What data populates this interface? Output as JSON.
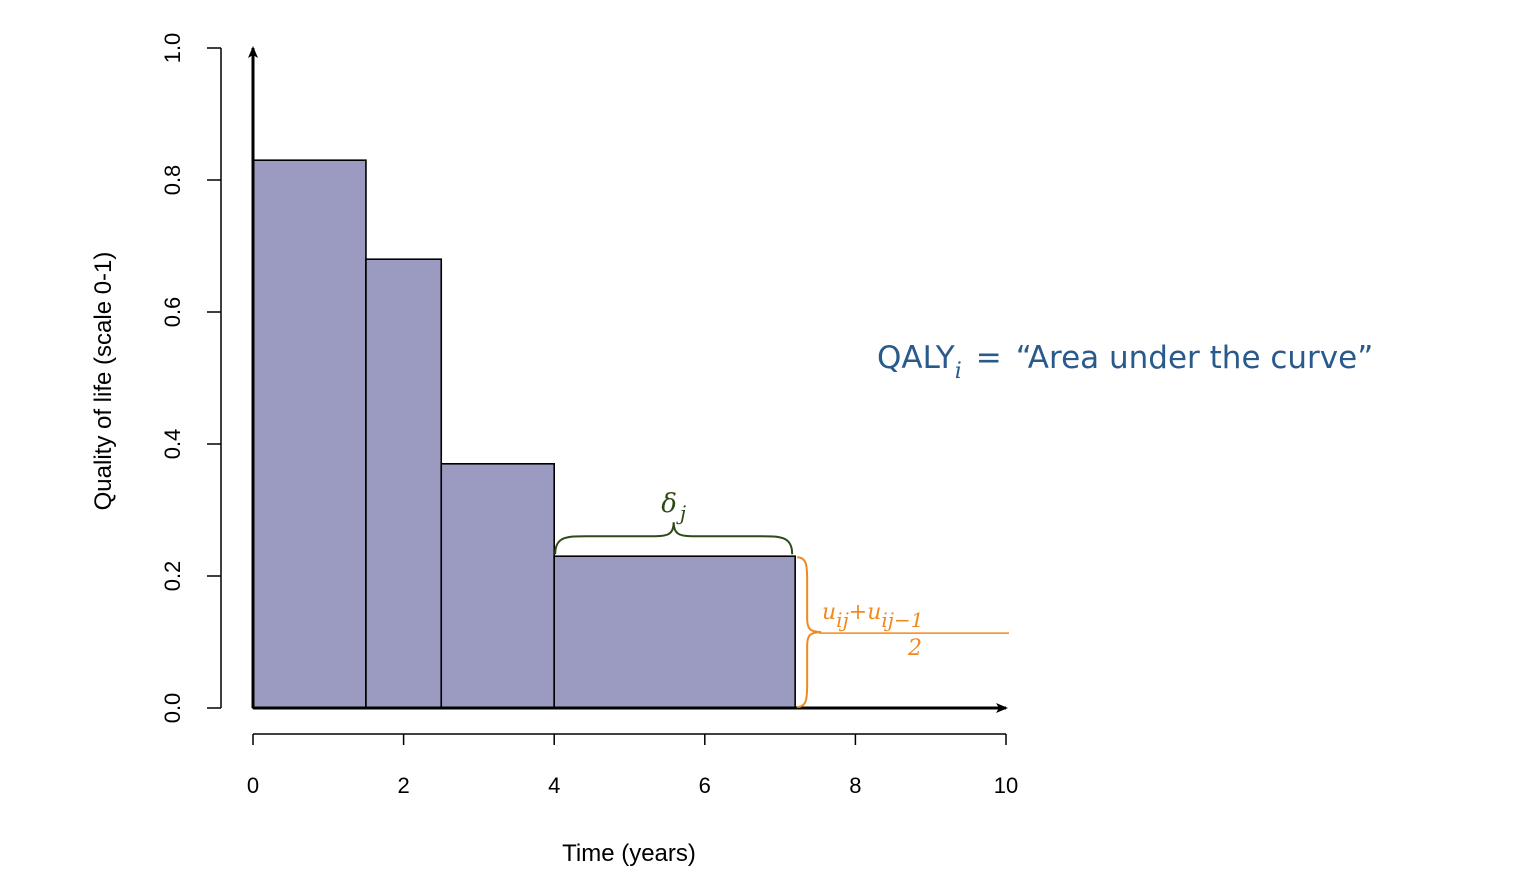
{
  "chart_data": {
    "type": "area",
    "step": true,
    "xlabel": "Time (years)",
    "ylabel": "Quality of life (scale 0-1)",
    "xlim": [
      0,
      10
    ],
    "ylim": [
      0,
      1
    ],
    "x_ticks": [
      0,
      2,
      4,
      6,
      8,
      10
    ],
    "x_tick_labels": [
      "0",
      "2",
      "4",
      "6",
      "8",
      "10"
    ],
    "y_ticks": [
      0,
      0.2,
      0.4,
      0.6,
      0.8,
      1
    ],
    "y_tick_labels": [
      "0.0",
      "0.2",
      "0.4",
      "0.6",
      "0.8",
      "1.0"
    ],
    "grid": false,
    "legend": "none",
    "steps": [
      {
        "x_start": 0,
        "x_end": 1.5,
        "y": 0.83
      },
      {
        "x_start": 1.5,
        "x_end": 2.5,
        "y": 0.68
      },
      {
        "x_start": 2.5,
        "x_end": 4.0,
        "y": 0.37
      },
      {
        "x_start": 4.0,
        "x_end": 7.2,
        "y": 0.23
      }
    ],
    "fill_color": "#9b9bc2",
    "annotations": {
      "delta": {
        "symbol": "δ",
        "subscript": "j",
        "x_start": 4.0,
        "x_end": 7.2,
        "y": 0.23,
        "color": "#2d4a17"
      },
      "utility_avg": {
        "numerator_1": "u",
        "numerator_1_sub": "ij",
        "plus": "+",
        "numerator_2": "u",
        "numerator_2_sub": "ij−1",
        "denominator": "2",
        "x": 7.2,
        "y_start": 0,
        "y_end": 0.23,
        "color": "#f08a1e"
      },
      "qaly": {
        "text_main": "QALY",
        "subscript": "i",
        "equals": "=",
        "quote_text": "“Area under the curve”",
        "color": "#285a8c"
      }
    }
  }
}
